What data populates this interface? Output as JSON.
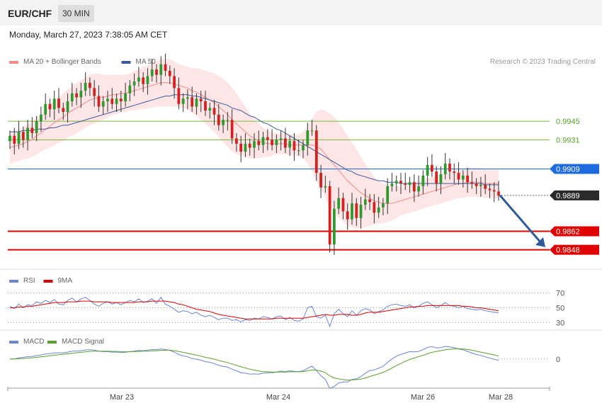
{
  "header": {
    "symbol": "EUR/CHF",
    "timeframe": "30 MIN",
    "datetime": "Monday, March 27, 2023 7:38:05 AM CET"
  },
  "colors": {
    "ma20": "#f28a8a",
    "band": "#ffdede",
    "ma50": "#3a5a9a",
    "support": "#e00000",
    "resistance": "#7cb342",
    "pivot": "#1e6be0",
    "up": "#2e9a2e",
    "down": "#d42020",
    "rsi": "#6b85d6",
    "rsi_ma": "#e00000",
    "macd": "#6b85d6",
    "macd_signal": "#5aa02c",
    "arrow": "#2f5a9a"
  },
  "chart_data": [
    {
      "type": "line",
      "panel": "price",
      "legend": [
        {
          "name": "MA 20 + Bollinger Bands",
          "color": "#f28a8a"
        },
        {
          "name": "MA 50",
          "color": "#3a5a9a"
        }
      ],
      "credit": "Research © 2023 Trading Central",
      "x_ticks": [
        "Mar 23",
        "Mar 24",
        "Mar 26",
        "Mar 28"
      ],
      "ylim": [
        0.9843,
        0.9983
      ],
      "levels": [
        {
          "value": 0.9945,
          "label": "0.9945",
          "kind": "resistance"
        },
        {
          "value": 0.9931,
          "label": "0.9931",
          "kind": "resistance"
        },
        {
          "value": 0.9909,
          "label": "0.9909",
          "kind": "pivot"
        },
        {
          "value": 0.9889,
          "label": "0.9889",
          "kind": "last"
        },
        {
          "value": 0.9862,
          "label": "0.9862",
          "kind": "support"
        },
        {
          "value": 0.9848,
          "label": "0.9848",
          "kind": "support"
        }
      ],
      "close": [
        0.9934,
        0.9928,
        0.9937,
        0.9931,
        0.994,
        0.9936,
        0.9945,
        0.995,
        0.9958,
        0.9954,
        0.9962,
        0.9955,
        0.9952,
        0.996,
        0.9966,
        0.9963,
        0.9968,
        0.9974,
        0.997,
        0.9964,
        0.9956,
        0.996,
        0.9962,
        0.9958,
        0.9962,
        0.996,
        0.9966,
        0.9972,
        0.9975,
        0.9978,
        0.9973,
        0.9979,
        0.9984,
        0.998,
        0.9988,
        0.9983,
        0.9979,
        0.997,
        0.9958,
        0.9962,
        0.9963,
        0.9956,
        0.9962,
        0.996,
        0.9953,
        0.9955,
        0.995,
        0.9942,
        0.9946,
        0.9946,
        0.9932,
        0.9928,
        0.9922,
        0.9928,
        0.9925,
        0.993,
        0.9927,
        0.9933,
        0.9931,
        0.9927,
        0.9931,
        0.9932,
        0.9925,
        0.993,
        0.9923,
        0.9923,
        0.9927,
        0.9938,
        0.9938,
        0.9906,
        0.9895,
        0.9896,
        0.9852,
        0.9879,
        0.9887,
        0.9877,
        0.9871,
        0.9883,
        0.9872,
        0.9882,
        0.9886,
        0.9884,
        0.9876,
        0.988,
        0.9883,
        0.9896,
        0.9898,
        0.99,
        0.9898,
        0.9897,
        0.9899,
        0.9892,
        0.9896,
        0.9904,
        0.9912,
        0.9907,
        0.9898,
        0.9905,
        0.9913,
        0.9907,
        0.9906,
        0.9901,
        0.9904,
        0.9899,
        0.9898,
        0.9896,
        0.9897,
        0.9894,
        0.9893,
        0.9892,
        0.9889
      ],
      "ma20": [
        0.9925,
        0.9926,
        0.9927,
        0.9928,
        0.993,
        0.9931,
        0.9934,
        0.9936,
        0.9939,
        0.9941,
        0.9944,
        0.9946,
        0.9948,
        0.9951,
        0.9953,
        0.9955,
        0.9957,
        0.9959,
        0.9961,
        0.9962,
        0.9963,
        0.9963,
        0.9964,
        0.9965,
        0.9965,
        0.9966,
        0.9966,
        0.9967,
        0.9968,
        0.9969,
        0.997,
        0.9971,
        0.9972,
        0.9973,
        0.9974,
        0.9974,
        0.9974,
        0.9973,
        0.9972,
        0.9971,
        0.997,
        0.9968,
        0.9967,
        0.9965,
        0.9963,
        0.9961,
        0.9959,
        0.9956,
        0.9953,
        0.995,
        0.9946,
        0.9943,
        0.994,
        0.9937,
        0.9934,
        0.9932,
        0.993,
        0.9929,
        0.9928,
        0.9928,
        0.9928,
        0.9928,
        0.9928,
        0.9927,
        0.9927,
        0.9927,
        0.9927,
        0.9927,
        0.9927,
        0.9926,
        0.9924,
        0.992,
        0.9916,
        0.9912,
        0.9908,
        0.9904,
        0.99,
        0.9897,
        0.9894,
        0.9891,
        0.9889,
        0.9887,
        0.9885,
        0.9884,
        0.9883,
        0.9883,
        0.9883,
        0.9884,
        0.9885,
        0.9886,
        0.9887,
        0.9888,
        0.9889,
        0.989,
        0.9891,
        0.9892,
        0.9893,
        0.9894,
        0.9895,
        0.9896,
        0.9897,
        0.9898,
        0.9898,
        0.9899,
        0.9899,
        0.9899,
        0.9899,
        0.9898,
        0.9898,
        0.9898,
        0.9898
      ],
      "ma50": [
        0.9937,
        0.9937,
        0.9937,
        0.9938,
        0.9938,
        0.9938,
        0.9939,
        0.9939,
        0.9939,
        0.994,
        0.994,
        0.9941,
        0.9942,
        0.9942,
        0.9943,
        0.9944,
        0.9945,
        0.9946,
        0.9947,
        0.9948,
        0.9949,
        0.995,
        0.9951,
        0.9952,
        0.9953,
        0.9954,
        0.9955,
        0.9956,
        0.9957,
        0.9958,
        0.9959,
        0.996,
        0.9961,
        0.9962,
        0.9963,
        0.9964,
        0.9964,
        0.9965,
        0.9965,
        0.9965,
        0.9965,
        0.9964,
        0.9964,
        0.9963,
        0.9962,
        0.9961,
        0.996,
        0.9959,
        0.9958,
        0.9957,
        0.9955,
        0.9954,
        0.9953,
        0.9951,
        0.9949,
        0.9948,
        0.9946,
        0.9944,
        0.9943,
        0.9941,
        0.9939,
        0.9938,
        0.9936,
        0.9934,
        0.9932,
        0.993,
        0.9928,
        0.9926,
        0.9924,
        0.9922,
        0.992,
        0.9918,
        0.9916,
        0.9914,
        0.9912,
        0.991,
        0.9908,
        0.9907,
        0.9905,
        0.9904,
        0.9903,
        0.9902,
        0.9901,
        0.99,
        0.99,
        0.9899,
        0.9899,
        0.9899,
        0.9898,
        0.9898,
        0.9898,
        0.9898,
        0.9898,
        0.9898,
        0.9898,
        0.9898,
        0.9898,
        0.9898,
        0.9898,
        0.9898,
        0.9898,
        0.9898,
        0.9898,
        0.9898,
        0.9898,
        0.9898,
        0.9898,
        0.9897,
        0.9897,
        0.9897,
        0.9897
      ],
      "band_width": [
        0.0012,
        0.0012,
        0.0012,
        0.0012,
        0.0013,
        0.0013,
        0.0014,
        0.0014,
        0.0015,
        0.0016,
        0.0017,
        0.0017,
        0.0018,
        0.0018,
        0.0019,
        0.0019,
        0.0019,
        0.0019,
        0.0019,
        0.0019,
        0.0018,
        0.0017,
        0.0016,
        0.0015,
        0.0015,
        0.0014,
        0.0014,
        0.0014,
        0.0015,
        0.0015,
        0.0016,
        0.0016,
        0.0017,
        0.0017,
        0.0018,
        0.0018,
        0.0018,
        0.0017,
        0.0016,
        0.0016,
        0.0016,
        0.0017,
        0.0018,
        0.0019,
        0.002,
        0.0021,
        0.0022,
        0.0023,
        0.0024,
        0.0024,
        0.0024,
        0.0023,
        0.0021,
        0.0019,
        0.0017,
        0.0015,
        0.0013,
        0.0011,
        0.001,
        0.0009,
        0.0008,
        0.0008,
        0.0008,
        0.0008,
        0.0008,
        0.0008,
        0.001,
        0.0014,
        0.002,
        0.0026,
        0.003,
        0.0033,
        0.0035,
        0.0036,
        0.0036,
        0.0035,
        0.0034,
        0.0032,
        0.003,
        0.0027,
        0.0024,
        0.0021,
        0.0018,
        0.0016,
        0.0015,
        0.0014,
        0.0013,
        0.0012,
        0.0011,
        0.0011,
        0.0011,
        0.0011,
        0.0011,
        0.0011,
        0.0011,
        0.0011,
        0.0011,
        0.0011,
        0.0011,
        0.0011,
        0.0011,
        0.0011,
        0.0011,
        0.0011,
        0.0011,
        0.0011,
        0.0011,
        0.0011,
        0.0011,
        0.0011,
        0.0011
      ],
      "forecast": {
        "from": 0.9889,
        "to": 0.985
      }
    },
    {
      "type": "line",
      "panel": "rsi",
      "legend": [
        {
          "name": "RSI",
          "color": "#6b85d6"
        },
        {
          "name": "9MA",
          "color": "#e00000"
        }
      ],
      "ylim": [
        20,
        80
      ],
      "levels": [
        {
          "value": 70,
          "label": "70"
        },
        {
          "value": 50,
          "label": "50"
        },
        {
          "value": 30,
          "label": "30"
        }
      ],
      "rsi": [
        52,
        49,
        55,
        50,
        54,
        53,
        58,
        56,
        60,
        57,
        61,
        55,
        54,
        60,
        63,
        58,
        62,
        64,
        60,
        55,
        52,
        56,
        58,
        55,
        57,
        54,
        57,
        60,
        58,
        62,
        57,
        59,
        62,
        56,
        64,
        55,
        52,
        48,
        44,
        46,
        45,
        42,
        44,
        40,
        38,
        40,
        37,
        34,
        36,
        36,
        33,
        34,
        31,
        34,
        33,
        36,
        35,
        38,
        37,
        35,
        38,
        39,
        34,
        37,
        33,
        32,
        35,
        50,
        52,
        38,
        36,
        40,
        25,
        42,
        48,
        42,
        38,
        46,
        40,
        46,
        49,
        47,
        42,
        45,
        47,
        52,
        54,
        55,
        53,
        52,
        54,
        50,
        52,
        56,
        58,
        54,
        50,
        53,
        57,
        53,
        52,
        50,
        52,
        49,
        48,
        47,
        48,
        46,
        45,
        44,
        43
      ],
      "ma": [
        50,
        50,
        51,
        51,
        52,
        52,
        53,
        54,
        55,
        56,
        57,
        57,
        57,
        58,
        58,
        58,
        59,
        59,
        59,
        58,
        58,
        58,
        58,
        57,
        57,
        57,
        57,
        57,
        57,
        58,
        58,
        58,
        59,
        59,
        59,
        59,
        58,
        57,
        55,
        54,
        52,
        50,
        48,
        47,
        46,
        45,
        43,
        41,
        40,
        39,
        38,
        37,
        36,
        35,
        35,
        35,
        35,
        35,
        35,
        35,
        36,
        36,
        36,
        36,
        36,
        36,
        36,
        37,
        38,
        39,
        40,
        41,
        40,
        40,
        41,
        41,
        41,
        40,
        40,
        41,
        43,
        44,
        44,
        44,
        45,
        46,
        47,
        48,
        49,
        50,
        51,
        51,
        52,
        52,
        53,
        53,
        53,
        53,
        53,
        53,
        53,
        53,
        52,
        52,
        51,
        50,
        50,
        49,
        48,
        47,
        46
      ]
    },
    {
      "type": "line",
      "panel": "macd",
      "legend": [
        {
          "name": "MACD",
          "color": "#6b85d6"
        },
        {
          "name": "MACD Signal",
          "color": "#5aa02c"
        }
      ],
      "ylim": [
        -0.0012,
        0.0008
      ],
      "levels": [
        {
          "value": 0,
          "label": "0"
        }
      ],
      "macd": [
        0.0,
        0.0,
        5e-05,
        7e-05,
        0.0001,
        0.00011,
        0.00014,
        0.00017,
        0.00021,
        0.00022,
        0.00026,
        0.00026,
        0.00026,
        0.00029,
        0.00033,
        0.00033,
        0.00035,
        0.00038,
        0.00039,
        0.00037,
        0.00033,
        0.00031,
        0.00031,
        0.00029,
        0.00029,
        0.00027,
        0.00028,
        0.00031,
        0.00033,
        0.00036,
        0.00035,
        0.00037,
        0.0004,
        0.00039,
        0.00042,
        0.0004,
        0.00036,
        0.00029,
        0.00019,
        0.00013,
        9e-05,
        2e-05,
        -1e-05,
        -5e-05,
        -0.00011,
        -0.00014,
        -0.00019,
        -0.00027,
        -0.00031,
        -0.00034,
        -0.00043,
        -0.0005,
        -0.00058,
        -0.0006,
        -0.00064,
        -0.00063,
        -0.00064,
        -0.0006,
        -0.00058,
        -0.00058,
        -0.00055,
        -0.00051,
        -0.00053,
        -0.0005,
        -0.00052,
        -0.00053,
        -0.0005,
        -0.00039,
        -0.0003,
        -0.00049,
        -0.00071,
        -0.00085,
        -0.00124,
        -0.00116,
        -0.00101,
        -0.00097,
        -0.00097,
        -0.00086,
        -0.00084,
        -0.00074,
        -0.0006,
        -0.00049,
        -0.00046,
        -0.00039,
        -0.00031,
        -0.00014,
        0.0,
        0.00012,
        0.00019,
        0.00025,
        0.00031,
        0.0003,
        0.00032,
        0.00039,
        0.00049,
        0.00052,
        0.00047,
        0.00048,
        0.00053,
        0.00051,
        0.00048,
        0.00042,
        0.00039,
        0.00032,
        0.00025,
        0.00019,
        0.00015,
        9e-05,
        4e-05,
        -1e-05,
        -6e-05
      ],
      "signal": [
        0.0,
        0.0,
        1e-05,
        2e-05,
        4e-05,
        5e-05,
        7e-05,
        9e-05,
        0.00011,
        0.00014,
        0.00016,
        0.00018,
        0.0002,
        0.00022,
        0.00024,
        0.00026,
        0.00028,
        0.0003,
        0.00032,
        0.00033,
        0.00033,
        0.00033,
        0.00033,
        0.00032,
        0.00032,
        0.00031,
        0.0003,
        0.00031,
        0.00031,
        0.00032,
        0.00033,
        0.00033,
        0.00034,
        0.00035,
        0.00036,
        0.00037,
        0.00037,
        0.00035,
        0.00032,
        0.00028,
        0.00024,
        0.0002,
        0.00016,
        0.00012,
        7e-05,
        3e-05,
        -1e-05,
        -6e-05,
        -0.00011,
        -0.00015,
        -0.00021,
        -0.00027,
        -0.00033,
        -0.00038,
        -0.00043,
        -0.00047,
        -0.00051,
        -0.00053,
        -0.00054,
        -0.00055,
        -0.00055,
        -0.00055,
        -0.00055,
        -0.00054,
        -0.00054,
        -0.00054,
        -0.00053,
        -0.0005,
        -0.00046,
        -0.00047,
        -0.00051,
        -0.00058,
        -0.00071,
        -0.0008,
        -0.00084,
        -0.00087,
        -0.00089,
        -0.00088,
        -0.00087,
        -0.00085,
        -0.0008,
        -0.00074,
        -0.00068,
        -0.00063,
        -0.00056,
        -0.00048,
        -0.00038,
        -0.00028,
        -0.00019,
        -0.0001,
        -2e-05,
        4e-05,
        0.0001,
        0.00015,
        0.00022,
        0.00028,
        0.00032,
        0.00035,
        0.00039,
        0.00041,
        0.00043,
        0.00043,
        0.00042,
        0.0004,
        0.00037,
        0.00033,
        0.00029,
        0.00025,
        0.00021,
        0.00017,
        0.00012
      ]
    }
  ]
}
